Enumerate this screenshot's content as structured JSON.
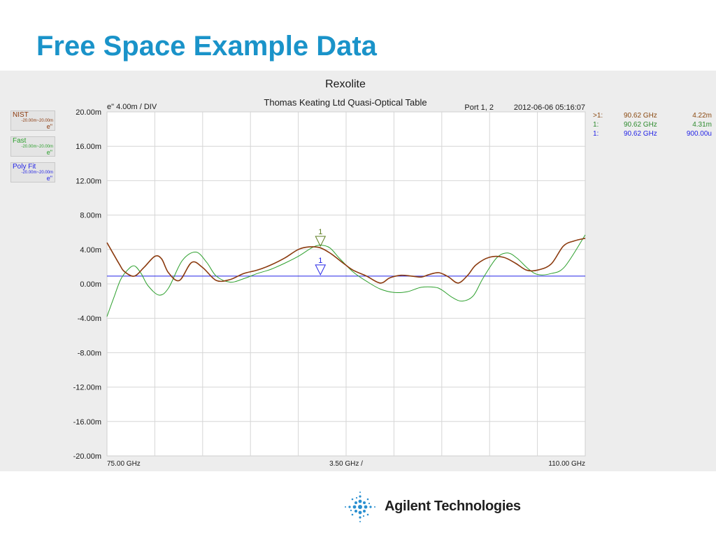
{
  "slide": {
    "title": "Free Space Example Data"
  },
  "chart_data": {
    "type": "line",
    "title": "Rexolite",
    "subtitle": "Thomas Keating Ltd Quasi-Optical Table",
    "scale_label": "e\"  4.00m / DIV",
    "port_label": "Port 1, 2",
    "timestamp": "2012-06-06 05:16:07",
    "x_start_label": "75.00 GHz",
    "x_span_label": "3.50 GHz /",
    "x_stop_label": "110.00 GHz",
    "xlim": [
      75,
      110
    ],
    "ylim": [
      -0.02,
      0.02
    ],
    "y_ticks": [
      {
        "value": 0.02,
        "label": "20.00m"
      },
      {
        "value": 0.016,
        "label": "16.00m"
      },
      {
        "value": 0.012,
        "label": "12.00m"
      },
      {
        "value": 0.008,
        "label": "8.00m"
      },
      {
        "value": 0.004,
        "label": "4.00m"
      },
      {
        "value": 0.0,
        "label": "0.00m"
      },
      {
        "value": -0.004,
        "label": "-4.00m"
      },
      {
        "value": -0.008,
        "label": "-8.00m"
      },
      {
        "value": -0.012,
        "label": "-12.00m"
      },
      {
        "value": -0.016,
        "label": "-16.00m"
      },
      {
        "value": -0.02,
        "label": "-20.00m"
      }
    ],
    "grid": true,
    "series": [
      {
        "name": "NIST",
        "range": "-20.00m~20.00m",
        "unit": "e\"",
        "color": "#8b3a0e",
        "x": [
          75.0,
          75.9,
          76.3,
          77.0,
          77.7,
          78.5,
          79.0,
          79.5,
          80.3,
          81.2,
          82.0,
          83.0,
          84.0,
          85.0,
          86.0,
          87.0,
          88.0,
          89.0,
          89.8,
          90.6,
          91.4,
          92.3,
          93.0,
          94.0,
          95.0,
          95.7,
          96.5,
          97.3,
          98.0,
          98.6,
          99.3,
          100.0,
          100.7,
          101.4,
          102.0,
          103.0,
          104.0,
          104.9,
          105.7,
          106.5,
          107.5,
          108.4,
          109.2,
          110.0
        ],
        "y": [
          0.0048,
          0.0023,
          0.0014,
          0.0009,
          0.0019,
          0.0032,
          0.0029,
          0.0013,
          0.0004,
          0.0025,
          0.0019,
          0.0004,
          0.0005,
          0.0012,
          0.0016,
          0.0022,
          0.003,
          0.004,
          0.0043,
          0.0042,
          0.0035,
          0.0024,
          0.0016,
          0.0009,
          0.0001,
          0.0007,
          0.001,
          0.0009,
          0.0008,
          0.0011,
          0.0013,
          0.0008,
          0.0001,
          0.001,
          0.0022,
          0.0031,
          0.0031,
          0.0024,
          0.0016,
          0.0016,
          0.0023,
          0.0044,
          0.005,
          0.0053
        ]
      },
      {
        "name": "Fast",
        "range": "-20.00m~20.00m",
        "unit": "e\"",
        "color": "#2ea02e",
        "x": [
          75.0,
          75.5,
          76.0,
          76.5,
          77.0,
          77.5,
          78.0,
          78.8,
          79.5,
          80.5,
          81.5,
          82.3,
          83.0,
          84.0,
          85.0,
          86.0,
          87.0,
          88.0,
          89.0,
          90.0,
          90.6,
          91.3,
          92.0,
          93.0,
          94.0,
          95.0,
          96.0,
          97.0,
          98.0,
          99.0,
          99.5,
          100.3,
          101.0,
          101.8,
          102.5,
          103.5,
          104.3,
          105.0,
          105.8,
          106.5,
          107.5,
          108.5,
          110.0
        ],
        "y": [
          -0.0038,
          -0.0016,
          0.0005,
          0.0016,
          0.0021,
          0.0012,
          -0.0002,
          -0.0013,
          -0.0005,
          0.0027,
          0.0037,
          0.0025,
          0.0009,
          0.0002,
          0.0006,
          0.0012,
          0.0017,
          0.0024,
          0.0032,
          0.0042,
          0.0045,
          0.0042,
          0.003,
          0.0014,
          0.0003,
          -0.0006,
          -0.001,
          -0.0009,
          -0.0004,
          -0.0004,
          -0.0007,
          -0.0016,
          -0.002,
          -0.0014,
          0.0006,
          0.003,
          0.0036,
          0.003,
          0.0018,
          0.0011,
          0.0012,
          0.002,
          0.0057
        ]
      },
      {
        "name": "Poly Fit",
        "range": "-20.00m~20.00m",
        "unit": "e\"",
        "color": "#2424e6",
        "x": [
          75.0,
          110.0
        ],
        "y": [
          0.0009,
          0.0009
        ]
      }
    ],
    "markers": [
      {
        "label": "1",
        "x": 90.62,
        "y": 0.00431,
        "color": "#5c7d22"
      },
      {
        "label": "1",
        "x": 90.62,
        "y": 0.0009,
        "color": "#2424e6"
      }
    ],
    "marker_table": [
      {
        "id": ">1:",
        "freq": "90.62 GHz",
        "value": "4.22m",
        "color": "#8b4a12"
      },
      {
        "id": "1:",
        "freq": "90.62 GHz",
        "value": "4.31m",
        "color": "#2e8b2e"
      },
      {
        "id": "1:",
        "freq": "90.62 GHz",
        "value": "900.00u",
        "color": "#2424e6"
      }
    ]
  },
  "footer": {
    "logo_text": "Agilent Technologies",
    "logo_icon": "agilent-spark-icon"
  }
}
